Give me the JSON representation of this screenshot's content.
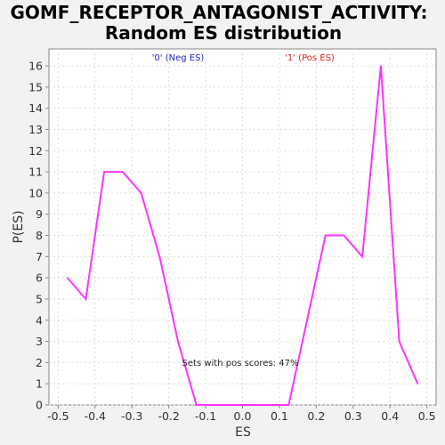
{
  "chart_data": {
    "type": "line",
    "title_line1": "GOMF_RECEPTOR_ANTAGONIST_ACTIVITY:",
    "title_line2": "Random ES distribution",
    "xlabel": "ES",
    "ylabel": "P(ES)",
    "xlim": [
      -0.525,
      0.525
    ],
    "ylim": [
      0,
      16.8
    ],
    "x_ticks": [
      -0.5,
      -0.4,
      -0.3,
      -0.2,
      -0.1,
      0.0,
      0.1,
      0.2,
      0.3,
      0.4,
      0.5
    ],
    "x_tick_labels": [
      "-0.5",
      "-0.4",
      "-0.3",
      "-0.2",
      "-0.1",
      "0.0",
      "0.1",
      "0.2",
      "0.3",
      "0.4",
      "0.5"
    ],
    "y_ticks": [
      0,
      1,
      2,
      3,
      4,
      5,
      6,
      7,
      8,
      9,
      10,
      11,
      12,
      13,
      14,
      15,
      16
    ],
    "y_tick_labels": [
      "0",
      "1",
      "2",
      "3",
      "4",
      "5",
      "6",
      "7",
      "8",
      "9",
      "10",
      "11",
      "12",
      "13",
      "14",
      "15",
      "16"
    ],
    "grid": true,
    "legend": [
      {
        "label": "'0' (Neg ES)",
        "color": "#2222bb"
      },
      {
        "label": "'1' (Pos ES)",
        "color": "#dd2222"
      }
    ],
    "annotation": "Sets with pos scores: 47%",
    "series": [
      {
        "color": "#ff33ff",
        "x": [
          -0.475,
          -0.425,
          -0.375,
          -0.325,
          -0.275,
          -0.225,
          -0.175,
          -0.125,
          -0.075,
          -0.025,
          0.025,
          0.075,
          0.125,
          0.175,
          0.225,
          0.275,
          0.325,
          0.375,
          0.425,
          0.475
        ],
        "y": [
          6,
          5,
          11,
          11,
          10,
          7,
          3,
          0,
          0,
          0,
          0,
          0,
          0,
          4,
          8,
          8,
          7,
          16,
          3,
          1
        ]
      }
    ]
  }
}
